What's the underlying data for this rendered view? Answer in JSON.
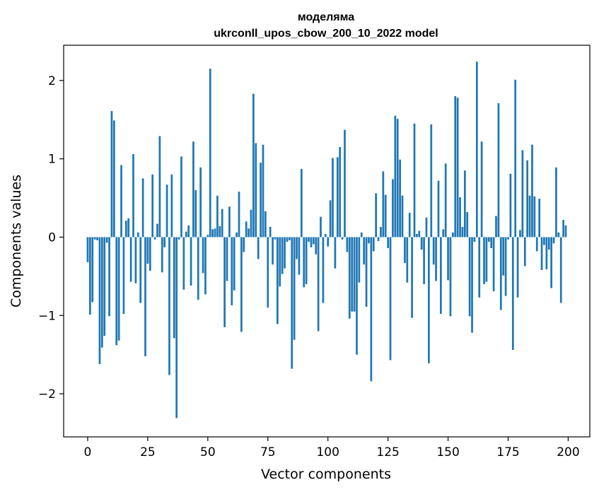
{
  "chart_data": {
    "type": "bar",
    "title_line1": "моделяма",
    "title_line2": "ukrconll_upos_cbow_200_10_2022 model",
    "xlabel": "Vector components",
    "ylabel": "Components values",
    "xlim": [
      -10,
      209
    ],
    "ylim": [
      -2.55,
      2.45
    ],
    "xticks": [
      0,
      25,
      50,
      75,
      100,
      125,
      150,
      175,
      200
    ],
    "xtick_labels": [
      "0",
      "25",
      "50",
      "75",
      "100",
      "125",
      "150",
      "175",
      "200"
    ],
    "yticks": [
      -2,
      -1,
      0,
      1,
      2
    ],
    "ytick_labels": [
      "−2",
      "−1",
      "0",
      "1",
      "2"
    ],
    "bar_color": "#1f77b4",
    "grid": false,
    "x": [
      0,
      1,
      2,
      3,
      4,
      5,
      6,
      7,
      8,
      9,
      10,
      11,
      12,
      13,
      14,
      15,
      16,
      17,
      18,
      19,
      20,
      21,
      22,
      23,
      24,
      25,
      26,
      27,
      28,
      29,
      30,
      31,
      32,
      33,
      34,
      35,
      36,
      37,
      38,
      39,
      40,
      41,
      42,
      43,
      44,
      45,
      46,
      47,
      48,
      49,
      50,
      51,
      52,
      53,
      54,
      55,
      56,
      57,
      58,
      59,
      60,
      61,
      62,
      63,
      64,
      65,
      66,
      67,
      68,
      69,
      70,
      71,
      72,
      73,
      74,
      75,
      76,
      77,
      78,
      79,
      80,
      81,
      82,
      83,
      84,
      85,
      86,
      87,
      88,
      89,
      90,
      91,
      92,
      93,
      94,
      95,
      96,
      97,
      98,
      99,
      100,
      101,
      102,
      103,
      104,
      105,
      106,
      107,
      108,
      109,
      110,
      111,
      112,
      113,
      114,
      115,
      116,
      117,
      118,
      119,
      120,
      121,
      122,
      123,
      124,
      125,
      126,
      127,
      128,
      129,
      130,
      131,
      132,
      133,
      134,
      135,
      136,
      137,
      138,
      139,
      140,
      141,
      142,
      143,
      144,
      145,
      146,
      147,
      148,
      149,
      150,
      151,
      152,
      153,
      154,
      155,
      156,
      157,
      158,
      159,
      160,
      161,
      162,
      163,
      164,
      165,
      166,
      167,
      168,
      169,
      170,
      171,
      172,
      173,
      174,
      175,
      176,
      177,
      178,
      179,
      180,
      181,
      182,
      183,
      184,
      185,
      186,
      187,
      188,
      189,
      190,
      191,
      192,
      193,
      194,
      195,
      196,
      197,
      198,
      199
    ],
    "values": [
      -0.32,
      -0.99,
      -0.83,
      -0.03,
      -0.04,
      -1.62,
      -1.41,
      -1.26,
      -0.07,
      -1.01,
      1.61,
      1.49,
      -1.38,
      -1.32,
      0.92,
      -0.98,
      0.21,
      0.24,
      -0.57,
      1.06,
      -0.59,
      0.06,
      -0.84,
      0.75,
      -1.52,
      -0.34,
      -0.43,
      0.8,
      -0.03,
      0.17,
      1.29,
      -0.45,
      -0.13,
      0.67,
      -1.76,
      0.8,
      -1.29,
      -2.31,
      -0.03,
      1.03,
      -0.67,
      0.07,
      0.15,
      -0.62,
      1.22,
      0.6,
      -0.8,
      0.89,
      -0.46,
      -0.73,
      0.03,
      2.15,
      0.1,
      0.11,
      0.53,
      0.14,
      0.36,
      -1.15,
      -0.56,
      0.39,
      -0.87,
      -0.68,
      0.06,
      0.58,
      -1.21,
      -0.19,
      0.2,
      0.11,
      0.35,
      1.83,
      1.2,
      -0.28,
      0.95,
      1.18,
      0.33,
      -0.9,
      0.13,
      -0.35,
      -0.03,
      -1.11,
      -0.63,
      -0.47,
      -0.4,
      -0.06,
      -0.04,
      -1.68,
      -1.31,
      -0.28,
      -0.48,
      0.87,
      -0.64,
      -0.6,
      -0.06,
      -0.13,
      -0.09,
      -0.22,
      -1.2,
      0.26,
      -0.84,
      0.04,
      -0.12,
      0.47,
      1.01,
      -0.4,
      1.02,
      1.15,
      -0.03,
      1.37,
      -0.19,
      -1.04,
      -0.95,
      -0.95,
      -1.5,
      -0.58,
      0.06,
      -0.35,
      -0.89,
      -0.08,
      -1.84,
      -0.18,
      0.56,
      -0.05,
      0.13,
      0.84,
      0.54,
      -0.14,
      -1.57,
      0.74,
      1.55,
      1.51,
      0.99,
      0.53,
      -0.33,
      -0.58,
      0.31,
      -1.03,
      1.45,
      0.04,
      0.08,
      -0.16,
      -0.6,
      0.25,
      -1.61,
      1.44,
      -0.35,
      -0.56,
      0.72,
      -0.98,
      0.1,
      0.94,
      -0.55,
      -1.01,
      0.06,
      1.8,
      1.78,
      0.51,
      0.13,
      0.85,
      0.32,
      -1.01,
      -1.22,
      -0.06,
      2.24,
      -0.77,
      1.22,
      -0.6,
      -0.57,
      -0.06,
      -0.14,
      -0.69,
      0.27,
      1.71,
      -0.93,
      -0.49,
      -0.75,
      -0.03,
      0.81,
      -1.44,
      2.01,
      -0.77,
      0.09,
      1.11,
      -0.37,
      0.98,
      0.53,
      1.18,
      0.52,
      -0.18,
      0.49,
      -0.42,
      -0.1,
      -0.41,
      -0.16,
      -0.65,
      -0.08,
      0.89,
      0.06,
      -0.84,
      0.22,
      0.15
    ]
  }
}
